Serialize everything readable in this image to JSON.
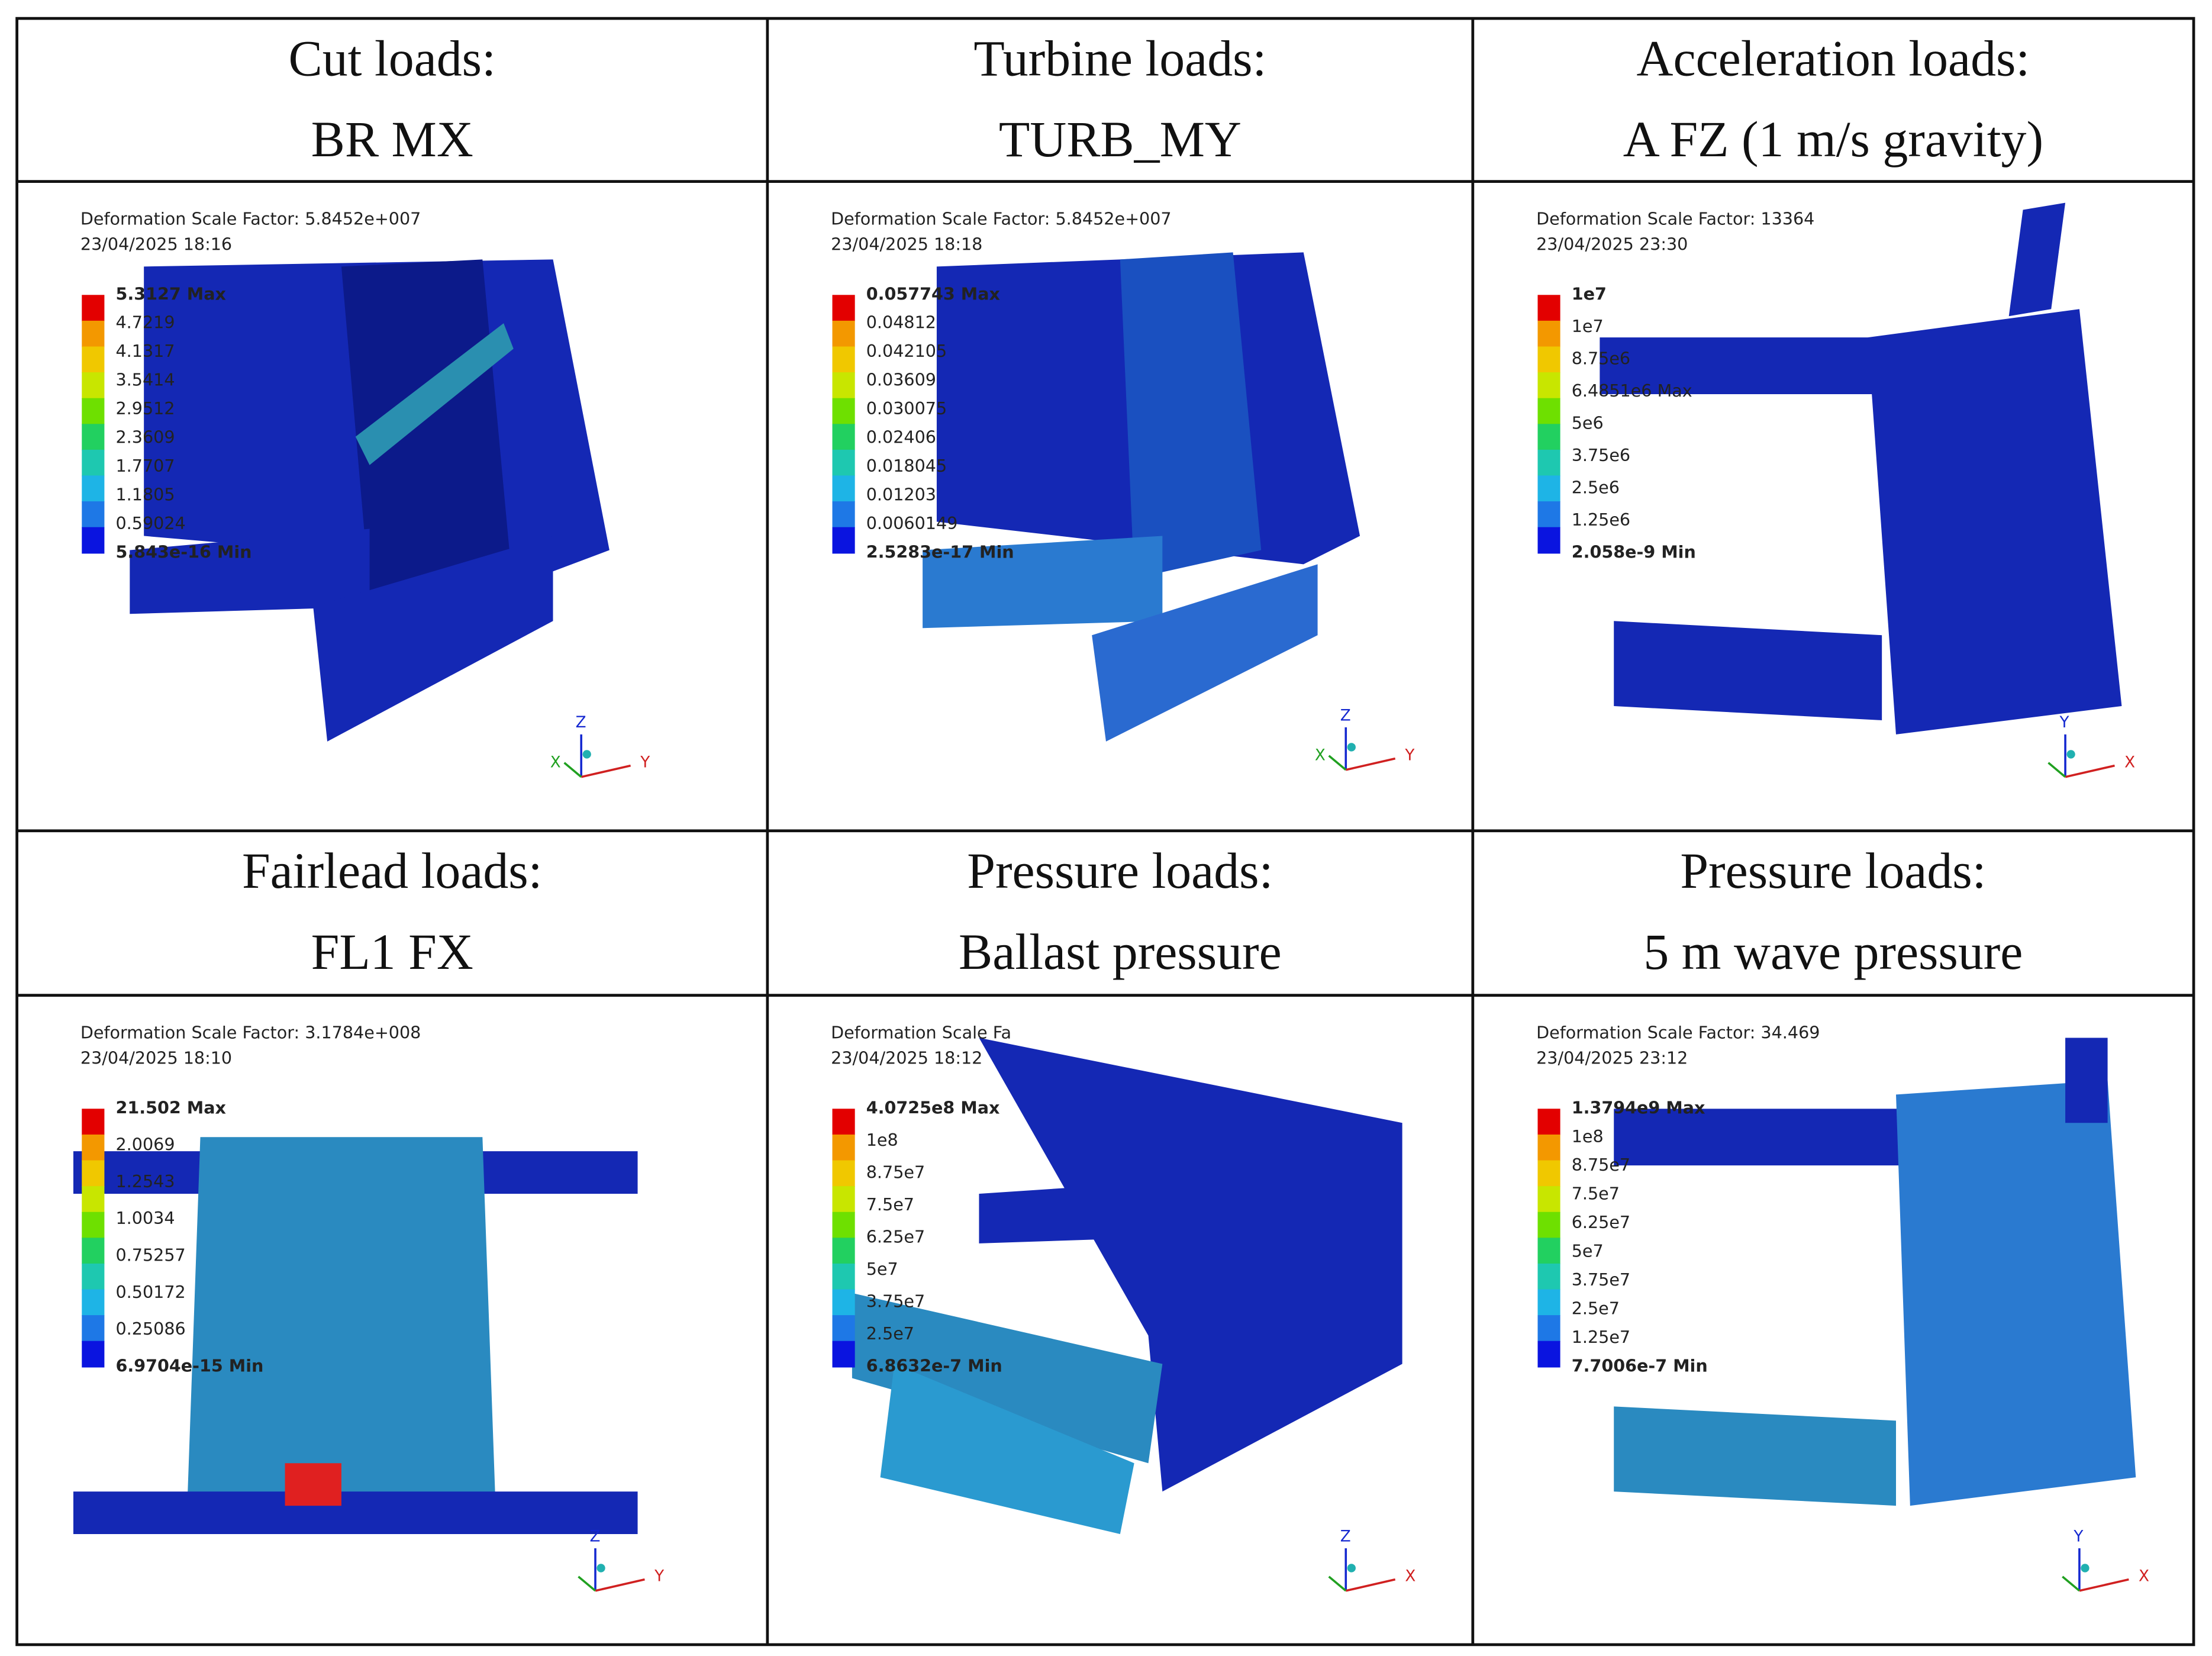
{
  "panels": [
    {
      "heading": [
        "Cut loads:",
        "BR MX"
      ],
      "scale_factor": "Deformation Scale Factor: 5.8452e+007",
      "date": "23/04/2025 18:16",
      "legend": [
        "5.3127 Max",
        "4.7219",
        "4.1317",
        "3.5414",
        "2.9512",
        "2.3609",
        "1.7707",
        "1.1805",
        "0.59024",
        "5.843e-16 Min"
      ],
      "axes": [
        "Z",
        "Y",
        "X"
      ]
    },
    {
      "heading": [
        "Turbine loads:",
        "TURB_MY"
      ],
      "scale_factor": "Deformation Scale Factor: 5.8452e+007",
      "date": "23/04/2025 18:18",
      "legend": [
        "0.057743 Max",
        "0.04812",
        "0.042105",
        "0.03609",
        "0.030075",
        "0.02406",
        "0.018045",
        "0.01203",
        "0.0060149",
        "2.5283e-17 Min"
      ],
      "axes": [
        "Z",
        "Y",
        "X"
      ]
    },
    {
      "heading": [
        "Acceleration loads:",
        "A FZ (1 m/s gravity)"
      ],
      "scale_factor": "Deformation Scale Factor: 13364",
      "date": "23/04/2025 23:30",
      "legend": [
        "1e7",
        "1e7",
        "8.75e6",
        "6.4851e6 Max",
        "5e6",
        "3.75e6",
        "2.5e6",
        "1.25e6",
        "2.058e-9 Min"
      ],
      "axes": [
        "Y",
        "X"
      ]
    },
    {
      "heading": [
        "Fairlead loads:",
        "FL1 FX"
      ],
      "scale_factor": "Deformation Scale Factor: 3.1784e+008",
      "date": "23/04/2025 18:10",
      "legend": [
        "21.502 Max",
        "2.0069",
        "1.2543",
        "1.0034",
        "0.75257",
        "0.50172",
        "0.25086",
        "6.9704e-15 Min"
      ],
      "axes": [
        "Z",
        "Y"
      ]
    },
    {
      "heading": [
        "Pressure loads:",
        "Ballast pressure"
      ],
      "scale_factor": "Deformation Scale Fa",
      "date": "23/04/2025 18:12",
      "legend": [
        "4.0725e8 Max",
        "1e8",
        "8.75e7",
        "7.5e7",
        "6.25e7",
        "5e7",
        "3.75e7",
        "2.5e7",
        "6.8632e-7 Min"
      ],
      "axes": [
        "Z",
        "X"
      ]
    },
    {
      "heading": [
        "Pressure loads:",
        "5 m wave pressure"
      ],
      "scale_factor": "Deformation Scale Factor: 34.469",
      "date": "23/04/2025 23:12",
      "legend": [
        "1.3794e9 Max",
        "1e8",
        "8.75e7",
        "7.5e7",
        "6.25e7",
        "5e7",
        "3.75e7",
        "2.5e7",
        "1.25e7",
        "7.7006e-7 Min"
      ],
      "axes": [
        "Y",
        "X"
      ]
    }
  ]
}
